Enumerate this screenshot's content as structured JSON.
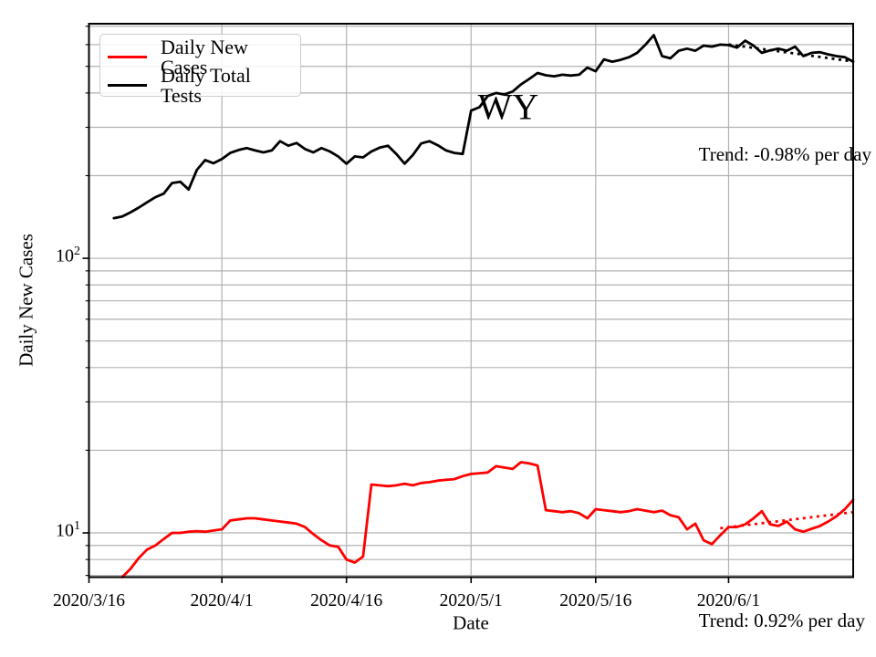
{
  "figure": {
    "state_label": "WY",
    "xlabel": "Date",
    "ylabel": "Daily New Cases",
    "trend_tests_label": "Trend: -0.98% per day",
    "trend_cases_label": "Trend: 0.92% per day",
    "colors": {
      "cases": "#ff0000",
      "tests": "#000000",
      "grid": "#b2b2b2",
      "spine": "#000000",
      "legend_border": "#cccccc"
    }
  },
  "legend": {
    "items": [
      {
        "label": "Daily New Cases",
        "color": "#ff0000"
      },
      {
        "label": "Daily Total Tests",
        "color": "#000000"
      }
    ]
  },
  "chart_data": {
    "type": "line",
    "title": "WY",
    "xlabel": "Date",
    "ylabel": "Daily New Cases",
    "legend_position": "upper left",
    "grid": true,
    "y_axis": {
      "scale": "log",
      "range": [
        6.9,
        715
      ],
      "grid_values": [
        7,
        8,
        9,
        10,
        20,
        30,
        40,
        50,
        60,
        70,
        80,
        90,
        100,
        200,
        300,
        400,
        500,
        600,
        700
      ],
      "major_ticks": [
        {
          "value": 10,
          "base": "10",
          "exp": "1"
        },
        {
          "value": 100,
          "base": "10",
          "exp": "2"
        }
      ]
    },
    "x_axis": {
      "unit": "days since 2020/3/16",
      "range": [
        0,
        92
      ],
      "ticks": [
        {
          "day": 0,
          "label": "2020/3/16"
        },
        {
          "day": 16,
          "label": "2020/4/1"
        },
        {
          "day": 31,
          "label": "2020/4/16"
        },
        {
          "day": 46,
          "label": "2020/5/1"
        },
        {
          "day": 61,
          "label": "2020/5/16"
        },
        {
          "day": 77,
          "label": "2020/6/1"
        }
      ]
    },
    "series": [
      {
        "name": "Daily Total Tests",
        "color": "#000000",
        "style": "solid",
        "start_day": 3,
        "start_date": "2020/3/19",
        "values": [
          140,
          142,
          147,
          153,
          160,
          167,
          172,
          188,
          190,
          178,
          210,
          228,
          222,
          230,
          242,
          248,
          252,
          247,
          243,
          247,
          267,
          257,
          263,
          250,
          243,
          252,
          245,
          235,
          221,
          235,
          233,
          245,
          253,
          257,
          240,
          221,
          238,
          262,
          267,
          258,
          247,
          242,
          240,
          345,
          355,
          390,
          400,
          395,
          405,
          430,
          450,
          473,
          464,
          460,
          466,
          463,
          466,
          495,
          480,
          530,
          520,
          528,
          540,
          560,
          600,
          650,
          545,
          535,
          570,
          580,
          570,
          595,
          590,
          600,
          598,
          585,
          620,
          595,
          560,
          572,
          580,
          570,
          590,
          545,
          560,
          563,
          553,
          545,
          540,
          520
        ]
      },
      {
        "name": "Daily New Cases",
        "color": "#ff0000",
        "style": "solid",
        "start_day": 4,
        "start_date": "2020/3/20",
        "values": [
          6.9,
          7.4,
          8.1,
          8.7,
          9.0,
          9.5,
          10.0,
          10.0,
          10.1,
          10.15,
          10.1,
          10.2,
          10.3,
          11.1,
          11.2,
          11.3,
          11.3,
          11.2,
          11.1,
          11.0,
          10.9,
          10.8,
          10.5,
          9.9,
          9.4,
          9.0,
          8.9,
          8.0,
          7.8,
          8.2,
          15.0,
          14.9,
          14.8,
          14.9,
          15.1,
          14.9,
          15.2,
          15.3,
          15.5,
          15.6,
          15.7,
          16.1,
          16.4,
          16.5,
          16.6,
          17.5,
          17.3,
          17.1,
          18.1,
          17.9,
          17.6,
          12.1,
          12.0,
          11.9,
          12.0,
          11.8,
          11.3,
          12.2,
          12.1,
          12.0,
          11.9,
          12.0,
          12.2,
          12.05,
          11.9,
          12.05,
          11.6,
          11.4,
          10.3,
          10.8,
          9.4,
          9.1,
          9.8,
          10.5,
          10.5,
          10.75,
          11.3,
          12.0,
          10.75,
          10.6,
          11.0,
          10.3,
          10.1,
          10.35,
          10.6,
          11.0,
          11.5,
          12.2,
          13.2
        ]
      },
      {
        "name": "Daily Total Tests trend fit (-0.98%/day)",
        "color": "#000000",
        "style": "dotted",
        "x": [
          77,
          92
        ],
        "values": [
          601,
          521
        ]
      },
      {
        "name": "Daily New Cases trend fit (0.92%/day)",
        "color": "#ff0000",
        "style": "dotted",
        "x": [
          76,
          92
        ],
        "values": [
          10.4,
          11.9
        ]
      }
    ],
    "annotations": [
      {
        "text": "Trend: -0.98% per day",
        "position": "right, beside end of tests line"
      },
      {
        "text": "Trend: 0.92% per day",
        "position": "below axis, bottom right"
      },
      {
        "text": "WY",
        "position": "center of plot"
      }
    ]
  }
}
